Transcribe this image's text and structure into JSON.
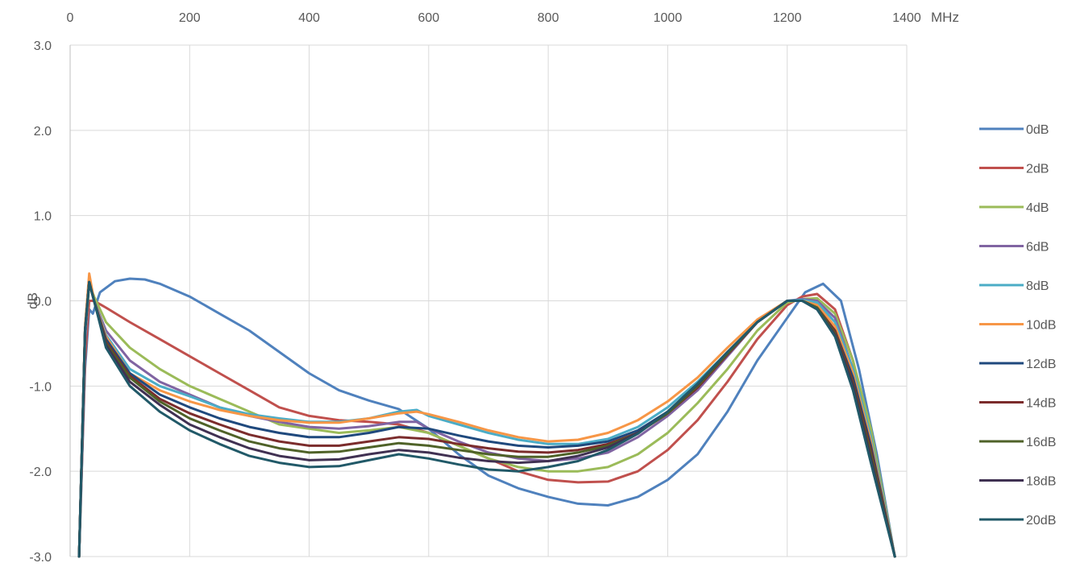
{
  "chart_data": {
    "type": "line",
    "title": "",
    "xlabel": "MHz",
    "ylabel": "dB",
    "xlim": [
      0,
      1400
    ],
    "ylim": [
      -3.0,
      3.0
    ],
    "x_axis_position": "top",
    "x_ticks": [
      0,
      200,
      400,
      600,
      800,
      1000,
      1200,
      1400
    ],
    "x_tick_labels": [
      "0",
      "200",
      "400",
      "600",
      "800",
      "1000",
      "1200",
      "1400"
    ],
    "y_ticks": [
      3.0,
      2.0,
      1.0,
      0.0,
      -1.0,
      -2.0,
      -3.0
    ],
    "y_tick_labels": [
      "3.0",
      "2.0",
      "1.0",
      "0.0",
      "-1.0",
      "-2.0",
      "-3.0"
    ],
    "grid": true,
    "legend_position": "right",
    "series": [
      {
        "name": "0dB",
        "color": "#4F81BD",
        "x": [
          15,
          25,
          32,
          38,
          50,
          75,
          100,
          125,
          150,
          200,
          250,
          300,
          350,
          400,
          450,
          500,
          550,
          600,
          650,
          700,
          750,
          800,
          850,
          900,
          950,
          1000,
          1050,
          1100,
          1150,
          1200,
          1230,
          1260,
          1290,
          1320,
          1350,
          1380
        ],
        "y": [
          -3.0,
          -0.8,
          -0.1,
          -0.15,
          0.1,
          0.23,
          0.26,
          0.25,
          0.2,
          0.05,
          -0.15,
          -0.35,
          -0.6,
          -0.85,
          -1.05,
          -1.17,
          -1.27,
          -1.5,
          -1.8,
          -2.05,
          -2.2,
          -2.3,
          -2.38,
          -2.4,
          -2.3,
          -2.1,
          -1.8,
          -1.3,
          -0.7,
          -0.2,
          0.1,
          0.2,
          0.0,
          -0.8,
          -1.8,
          -3.0
        ]
      },
      {
        "name": "2dB",
        "color": "#C0504D",
        "x": [
          15,
          25,
          32,
          40,
          60,
          100,
          150,
          200,
          250,
          300,
          350,
          400,
          450,
          500,
          550,
          600,
          650,
          700,
          750,
          800,
          850,
          900,
          950,
          1000,
          1050,
          1100,
          1150,
          1200,
          1225,
          1250,
          1280,
          1310,
          1340,
          1380
        ],
        "y": [
          -3.0,
          -0.7,
          0.0,
          0.0,
          -0.08,
          -0.25,
          -0.45,
          -0.65,
          -0.85,
          -1.05,
          -1.25,
          -1.35,
          -1.4,
          -1.42,
          -1.45,
          -1.55,
          -1.7,
          -1.85,
          -2.0,
          -2.1,
          -2.13,
          -2.12,
          -2.0,
          -1.75,
          -1.4,
          -0.95,
          -0.45,
          -0.05,
          0.05,
          0.08,
          -0.1,
          -0.7,
          -1.6,
          -3.0
        ]
      },
      {
        "name": "4dB",
        "color": "#9BBB59",
        "x": [
          15,
          25,
          32,
          40,
          60,
          100,
          150,
          200,
          250,
          300,
          350,
          400,
          450,
          500,
          550,
          600,
          650,
          700,
          750,
          800,
          850,
          900,
          950,
          1000,
          1050,
          1100,
          1150,
          1200,
          1225,
          1250,
          1280,
          1310,
          1340,
          1380
        ],
        "y": [
          -3.0,
          -0.5,
          0.2,
          0.05,
          -0.25,
          -0.55,
          -0.8,
          -1.0,
          -1.15,
          -1.3,
          -1.45,
          -1.5,
          -1.55,
          -1.52,
          -1.48,
          -1.55,
          -1.7,
          -1.85,
          -1.95,
          -2.0,
          -2.0,
          -1.95,
          -1.8,
          -1.55,
          -1.2,
          -0.8,
          -0.35,
          -0.02,
          0.02,
          0.03,
          -0.15,
          -0.7,
          -1.5,
          -3.0
        ]
      },
      {
        "name": "6dB",
        "color": "#8064A2",
        "x": [
          15,
          25,
          32,
          40,
          60,
          100,
          150,
          200,
          250,
          300,
          350,
          400,
          450,
          500,
          550,
          580,
          600,
          650,
          700,
          750,
          800,
          850,
          900,
          950,
          1000,
          1050,
          1100,
          1150,
          1200,
          1225,
          1250,
          1280,
          1310,
          1340,
          1380
        ],
        "y": [
          -3.0,
          -0.5,
          0.25,
          0.0,
          -0.35,
          -0.7,
          -0.95,
          -1.1,
          -1.25,
          -1.35,
          -1.42,
          -1.48,
          -1.5,
          -1.47,
          -1.42,
          -1.42,
          -1.5,
          -1.65,
          -1.78,
          -1.85,
          -1.88,
          -1.85,
          -1.78,
          -1.6,
          -1.35,
          -1.05,
          -0.65,
          -0.25,
          0.0,
          0.02,
          0.0,
          -0.2,
          -0.8,
          -1.6,
          -3.0
        ]
      },
      {
        "name": "8dB",
        "color": "#4BACC6",
        "x": [
          15,
          25,
          32,
          40,
          60,
          100,
          150,
          200,
          250,
          300,
          350,
          400,
          450,
          500,
          550,
          580,
          600,
          650,
          700,
          750,
          800,
          850,
          900,
          950,
          1000,
          1050,
          1100,
          1150,
          1200,
          1225,
          1250,
          1280,
          1310,
          1340,
          1380
        ],
        "y": [
          -3.0,
          -0.4,
          0.28,
          0.0,
          -0.4,
          -0.8,
          -1.0,
          -1.12,
          -1.25,
          -1.33,
          -1.38,
          -1.42,
          -1.42,
          -1.38,
          -1.3,
          -1.28,
          -1.35,
          -1.45,
          -1.55,
          -1.63,
          -1.68,
          -1.68,
          -1.62,
          -1.48,
          -1.25,
          -0.95,
          -0.6,
          -0.25,
          0.0,
          0.01,
          -0.02,
          -0.25,
          -0.8,
          -1.6,
          -3.0
        ]
      },
      {
        "name": "10dB",
        "color": "#F79646",
        "x": [
          15,
          25,
          32,
          40,
          60,
          100,
          150,
          200,
          250,
          300,
          350,
          400,
          450,
          500,
          550,
          580,
          600,
          650,
          700,
          750,
          800,
          850,
          900,
          950,
          1000,
          1050,
          1100,
          1150,
          1200,
          1225,
          1250,
          1280,
          1310,
          1340,
          1380
        ],
        "y": [
          -3.0,
          -0.3,
          0.32,
          0.0,
          -0.42,
          -0.85,
          -1.05,
          -1.18,
          -1.28,
          -1.35,
          -1.4,
          -1.43,
          -1.43,
          -1.38,
          -1.32,
          -1.3,
          -1.33,
          -1.42,
          -1.52,
          -1.6,
          -1.65,
          -1.63,
          -1.55,
          -1.4,
          -1.18,
          -0.9,
          -0.55,
          -0.22,
          0.0,
          0.0,
          -0.05,
          -0.3,
          -0.85,
          -1.65,
          -3.0
        ]
      },
      {
        "name": "12dB",
        "color": "#1F497D",
        "x": [
          15,
          25,
          32,
          40,
          60,
          100,
          150,
          200,
          250,
          300,
          350,
          400,
          450,
          500,
          550,
          600,
          650,
          700,
          750,
          800,
          850,
          900,
          950,
          1000,
          1050,
          1100,
          1150,
          1200,
          1225,
          1250,
          1280,
          1310,
          1340,
          1380
        ],
        "y": [
          -3.0,
          -0.35,
          0.22,
          0.0,
          -0.45,
          -0.85,
          -1.1,
          -1.25,
          -1.38,
          -1.48,
          -1.55,
          -1.6,
          -1.6,
          -1.55,
          -1.48,
          -1.5,
          -1.58,
          -1.65,
          -1.7,
          -1.72,
          -1.7,
          -1.65,
          -1.52,
          -1.3,
          -1.0,
          -0.62,
          -0.25,
          0.0,
          0.0,
          -0.08,
          -0.35,
          -0.9,
          -1.7,
          -3.0
        ]
      },
      {
        "name": "14dB",
        "color": "#7B2C2C",
        "x": [
          15,
          25,
          32,
          40,
          60,
          100,
          150,
          200,
          250,
          300,
          350,
          400,
          450,
          500,
          550,
          600,
          650,
          700,
          750,
          800,
          850,
          900,
          950,
          1000,
          1050,
          1100,
          1150,
          1200,
          1225,
          1250,
          1280,
          1310,
          1340,
          1380
        ],
        "y": [
          -3.0,
          -0.35,
          0.22,
          0.0,
          -0.48,
          -0.88,
          -1.15,
          -1.32,
          -1.45,
          -1.57,
          -1.65,
          -1.7,
          -1.7,
          -1.65,
          -1.6,
          -1.62,
          -1.68,
          -1.73,
          -1.77,
          -1.78,
          -1.75,
          -1.68,
          -1.55,
          -1.32,
          -1.02,
          -0.63,
          -0.25,
          0.0,
          0.0,
          -0.08,
          -0.35,
          -0.95,
          -1.75,
          -3.0
        ]
      },
      {
        "name": "16dB",
        "color": "#4F6228",
        "x": [
          15,
          25,
          32,
          40,
          60,
          100,
          150,
          200,
          250,
          300,
          350,
          400,
          450,
          500,
          550,
          600,
          650,
          700,
          750,
          800,
          850,
          900,
          950,
          1000,
          1050,
          1100,
          1150,
          1200,
          1225,
          1250,
          1280,
          1310,
          1340,
          1380
        ],
        "y": [
          -3.0,
          -0.35,
          0.22,
          0.0,
          -0.5,
          -0.9,
          -1.18,
          -1.38,
          -1.52,
          -1.65,
          -1.73,
          -1.78,
          -1.77,
          -1.72,
          -1.67,
          -1.7,
          -1.75,
          -1.8,
          -1.83,
          -1.83,
          -1.78,
          -1.7,
          -1.55,
          -1.32,
          -1.0,
          -0.62,
          -0.25,
          0.0,
          0.0,
          -0.08,
          -0.38,
          -0.98,
          -1.8,
          -3.0
        ]
      },
      {
        "name": "18dB",
        "color": "#403152",
        "x": [
          15,
          25,
          32,
          40,
          60,
          100,
          150,
          200,
          250,
          300,
          350,
          400,
          450,
          500,
          550,
          600,
          650,
          700,
          750,
          800,
          850,
          900,
          950,
          1000,
          1050,
          1100,
          1150,
          1200,
          1225,
          1250,
          1280,
          1310,
          1340,
          1380
        ],
        "y": [
          -3.0,
          -0.35,
          0.22,
          0.0,
          -0.52,
          -0.95,
          -1.22,
          -1.45,
          -1.6,
          -1.73,
          -1.82,
          -1.87,
          -1.86,
          -1.8,
          -1.75,
          -1.78,
          -1.84,
          -1.88,
          -1.9,
          -1.88,
          -1.82,
          -1.72,
          -1.55,
          -1.3,
          -0.98,
          -0.6,
          -0.25,
          0.0,
          0.0,
          -0.1,
          -0.4,
          -1.0,
          -1.85,
          -3.0
        ]
      },
      {
        "name": "20dB",
        "color": "#215968",
        "x": [
          15,
          25,
          32,
          40,
          60,
          100,
          150,
          200,
          250,
          300,
          350,
          400,
          450,
          500,
          550,
          600,
          650,
          700,
          750,
          800,
          850,
          900,
          950,
          1000,
          1050,
          1100,
          1150,
          1200,
          1225,
          1250,
          1280,
          1310,
          1340,
          1380
        ],
        "y": [
          -3.0,
          -0.35,
          0.22,
          0.0,
          -0.55,
          -1.0,
          -1.3,
          -1.52,
          -1.68,
          -1.82,
          -1.9,
          -1.95,
          -1.94,
          -1.87,
          -1.8,
          -1.85,
          -1.92,
          -1.98,
          -2.0,
          -1.95,
          -1.88,
          -1.75,
          -1.56,
          -1.3,
          -0.97,
          -0.6,
          -0.25,
          0.0,
          0.0,
          -0.1,
          -0.42,
          -1.05,
          -1.9,
          -3.0
        ]
      }
    ]
  }
}
